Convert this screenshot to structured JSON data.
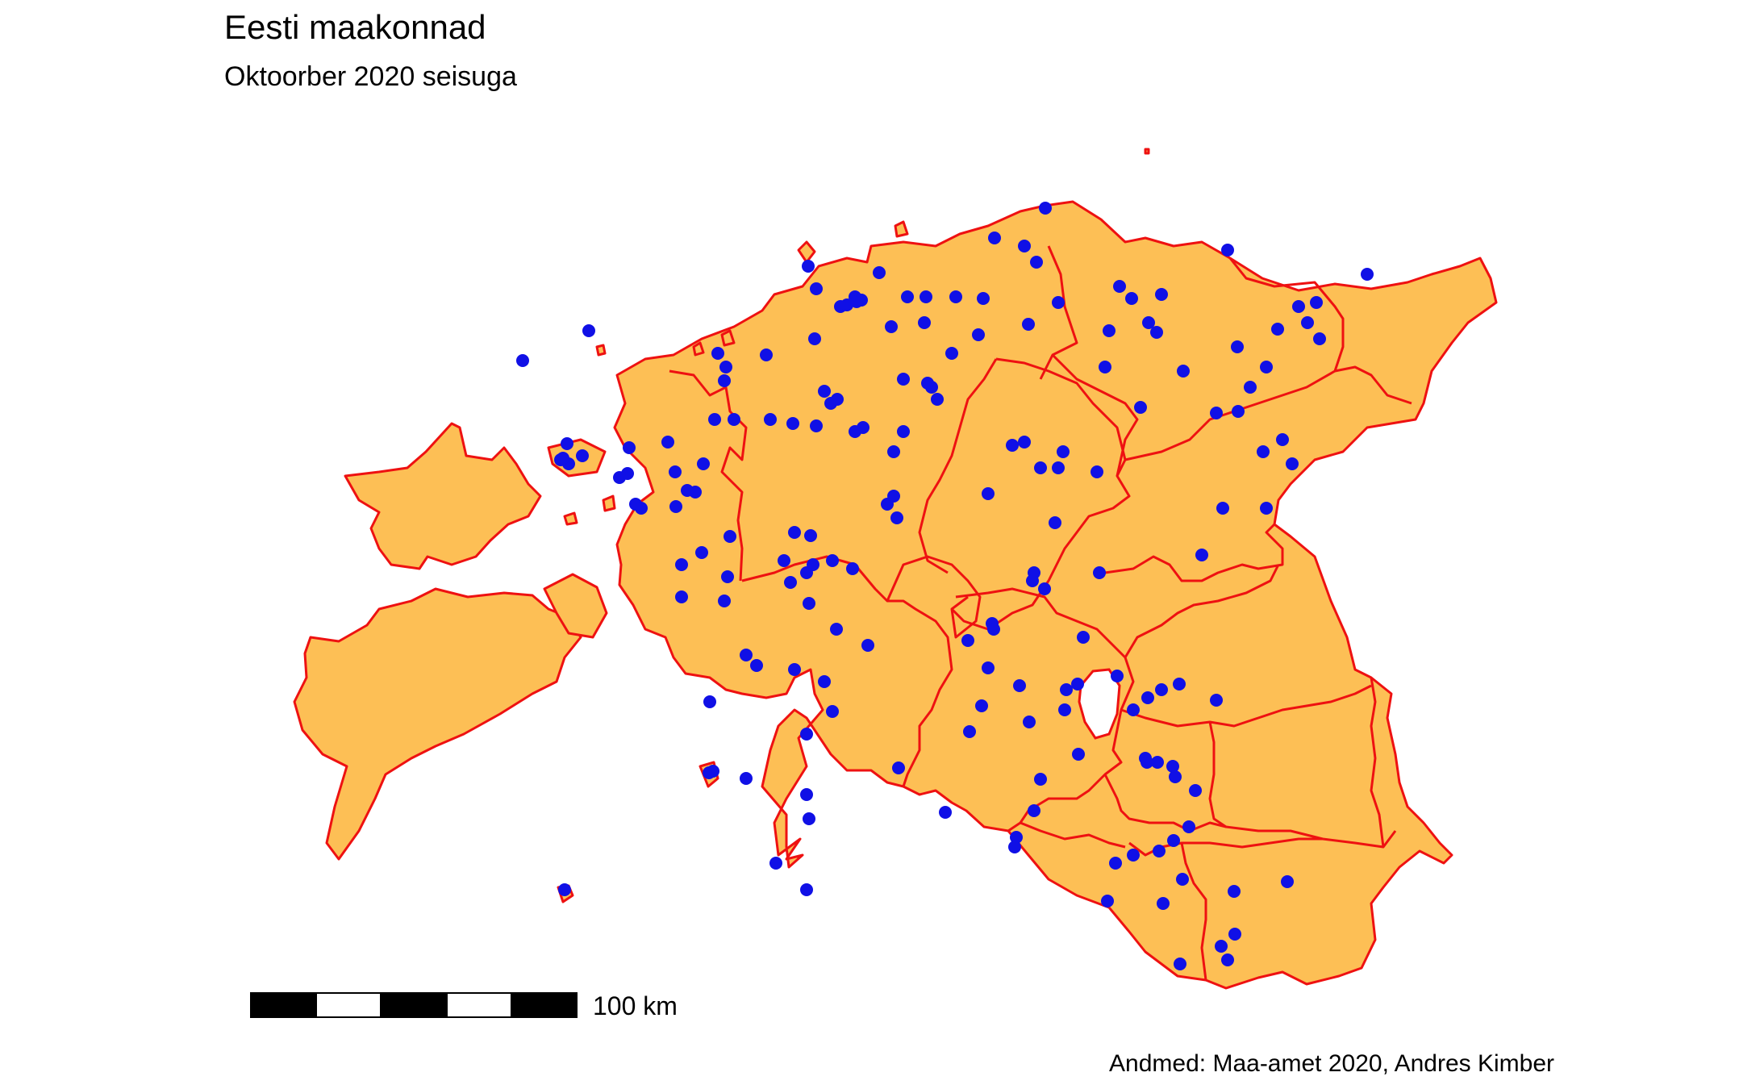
{
  "title": "Eesti maakonnad",
  "subtitle": "Oktoorber 2020 seisuga",
  "source": "Andmed: Maa-amet 2020, Andres Kimber",
  "scale_bar": {
    "label": "100 km"
  },
  "colors": {
    "land": "#fdbf55",
    "borders": "#ee1111",
    "settlements": "#1010e6"
  },
  "map": {
    "subject": "Estonian counties (maakonnad)",
    "settlement_count": 175
  }
}
